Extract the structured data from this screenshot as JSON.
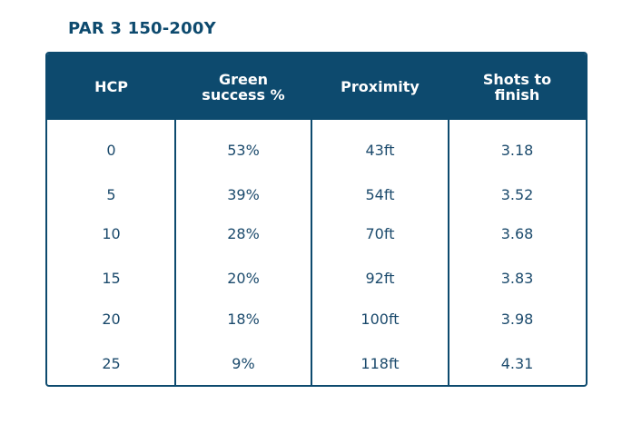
{
  "title": "PAR 3 150-200Y",
  "chart_data": {
    "type": "table",
    "title": "PAR 3 150-200Y",
    "columns": [
      "HCP",
      "Green success %",
      "Proximity",
      "Shots to finish"
    ],
    "rows": [
      [
        "0",
        "53%",
        "43ft",
        "3.18"
      ],
      [
        "5",
        "39%",
        "54ft",
        "3.52"
      ],
      [
        "10",
        "28%",
        "70ft",
        "3.68"
      ],
      [
        "15",
        "20%",
        "92ft",
        "3.83"
      ],
      [
        "20",
        "18%",
        "100ft",
        "3.98"
      ],
      [
        "25",
        "9%",
        "118ft",
        "4.31"
      ]
    ]
  },
  "colors": {
    "header_bg": "#0d4a6e",
    "header_text": "#ffffff",
    "body_text": "#1b4a6c"
  }
}
